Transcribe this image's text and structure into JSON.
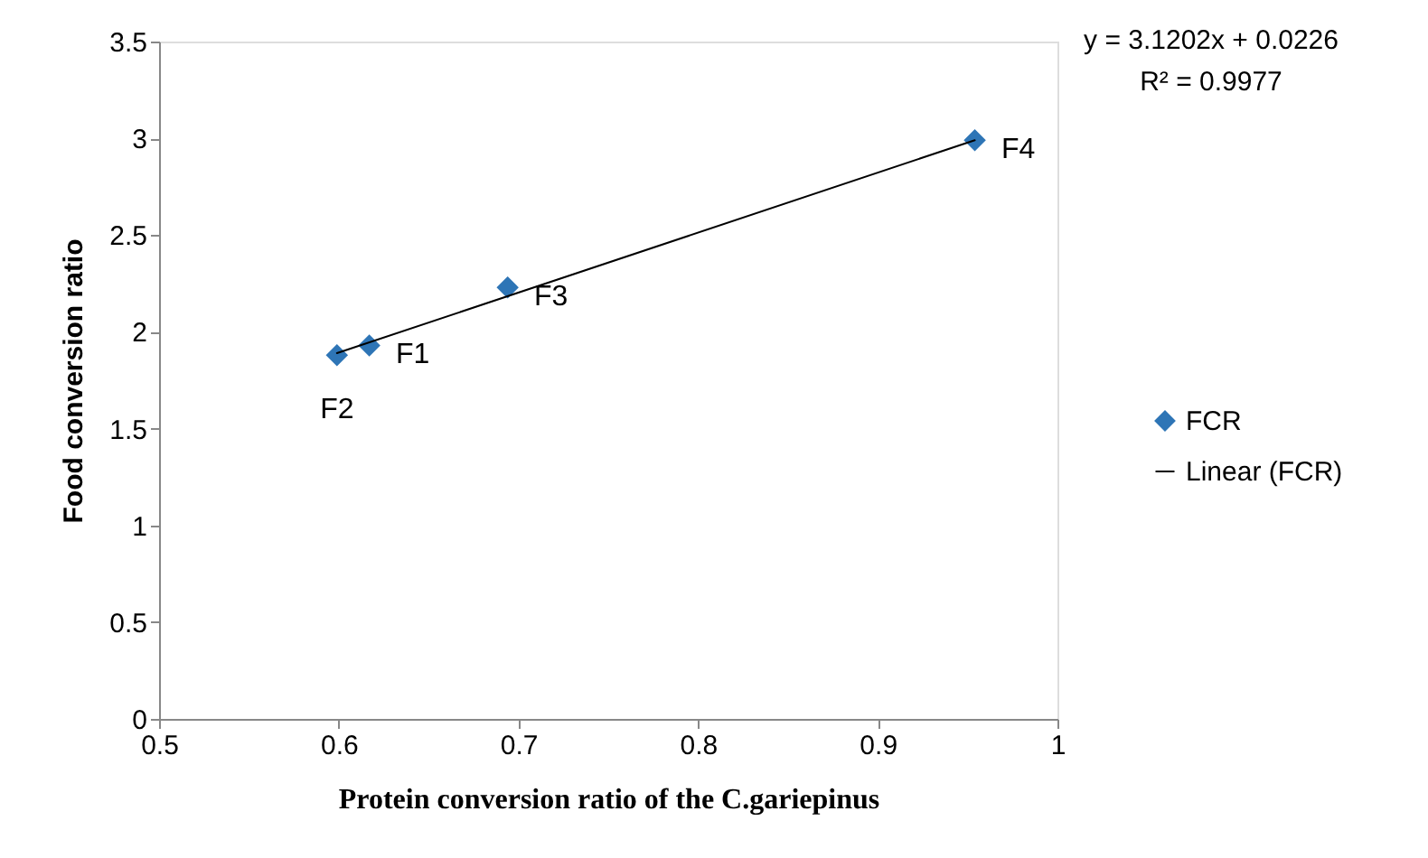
{
  "chart_data": {
    "type": "scatter",
    "xlabel": "Protein conversion ratio of the C.gariepinus",
    "ylabel": "Food conversion ratio",
    "xlim": [
      0.5,
      1
    ],
    "ylim": [
      0,
      3.5
    ],
    "xticks": [
      0.5,
      0.6,
      0.7,
      0.8,
      0.9,
      1
    ],
    "yticks": [
      0,
      0.5,
      1,
      1.5,
      2,
      2.5,
      3,
      3.5
    ],
    "grid": false,
    "legend": "right",
    "series": [
      {
        "name": "FCR",
        "marker": "diamond",
        "color": "#2e75b6",
        "x": [
          0.617,
          0.599,
          0.694,
          0.954
        ],
        "values": [
          1.93,
          1.88,
          2.23,
          2.99
        ]
      },
      {
        "name": "Linear (FCR)",
        "type": "line",
        "line_style": "solid",
        "color": "#000000",
        "x": [
          0.599,
          0.954
        ],
        "values": [
          1.89,
          2.99
        ]
      }
    ],
    "annotations": [
      "y = 3.1202x + 0.0226",
      "R² = 0.9977",
      {
        "text": "F1",
        "x": 0.617,
        "y": 1.93
      },
      {
        "text": "F2",
        "x": 0.599,
        "y": 1.88
      },
      {
        "text": "F3",
        "x": 0.694,
        "y": 2.23
      },
      {
        "text": "F4",
        "x": 0.954,
        "y": 2.99
      }
    ]
  }
}
